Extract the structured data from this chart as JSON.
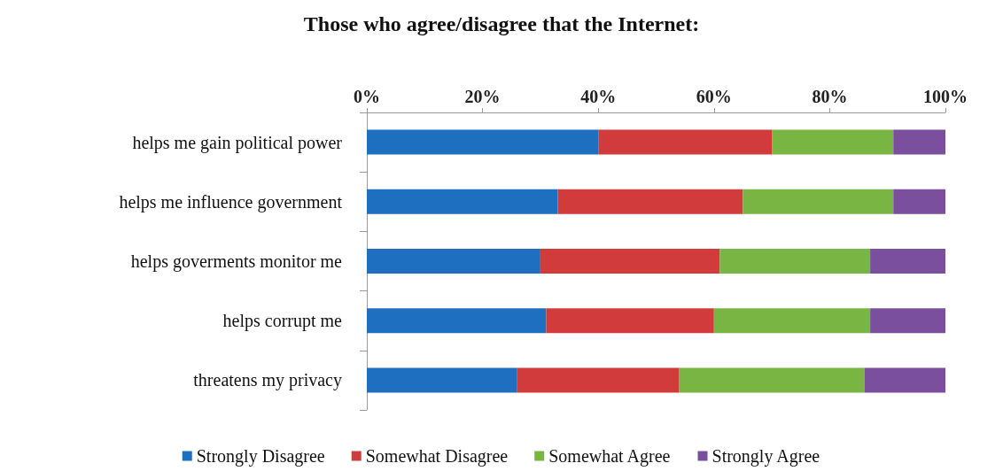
{
  "chart_data": {
    "type": "bar",
    "title": "Those who agree/disagree that the Internet:",
    "orientation": "horizontal",
    "stacked": true,
    "categories": [
      "helps me gain political power",
      "helps me influence government",
      "helps goverments monitor me",
      "helps corrupt me",
      "threatens my privacy"
    ],
    "series": [
      {
        "name": "Strongly Disagree",
        "color": "#1f6fc0",
        "values": [
          40,
          33,
          30,
          31,
          26
        ]
      },
      {
        "name": "Somewhat Disagree",
        "color": "#d13b3b",
        "values": [
          30,
          32,
          31,
          29,
          28
        ]
      },
      {
        "name": "Somewhat Agree",
        "color": "#78b543",
        "values": [
          21,
          26,
          26,
          27,
          32
        ]
      },
      {
        "name": "Strongly Agree",
        "color": "#7a4f9e",
        "values": [
          9,
          9,
          13,
          13,
          14
        ]
      }
    ],
    "xlim": [
      0,
      100
    ],
    "xticks": [
      {
        "value": 0,
        "label": "0%"
      },
      {
        "value": 20,
        "label": "20%"
      },
      {
        "value": 40,
        "label": "40%"
      },
      {
        "value": 60,
        "label": "60%"
      },
      {
        "value": 80,
        "label": "80%"
      },
      {
        "value": 100,
        "label": "100%"
      }
    ],
    "grid": false,
    "legend": "bottom"
  }
}
